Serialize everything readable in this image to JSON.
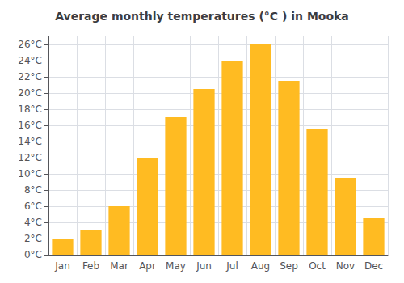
{
  "chart_data": {
    "type": "bar",
    "title": "Average monthly temperatures (°C ) in Mooka",
    "categories": [
      "Jan",
      "Feb",
      "Mar",
      "Apr",
      "May",
      "Jun",
      "Jul",
      "Aug",
      "Sep",
      "Oct",
      "Nov",
      "Dec"
    ],
    "values": [
      2,
      3,
      6,
      12,
      17,
      20.5,
      24,
      26,
      21.5,
      15.5,
      9.5,
      4.5
    ],
    "color": "#FFBB22",
    "ylim": [
      0,
      27
    ],
    "yticks": [
      {
        "value": 0,
        "label": "0°C"
      },
      {
        "value": 2,
        "label": "2°C"
      },
      {
        "value": 4,
        "label": "4°C"
      },
      {
        "value": 6,
        "label": "6°C"
      },
      {
        "value": 8,
        "label": "8°C"
      },
      {
        "value": 10,
        "label": "10°C"
      },
      {
        "value": 12,
        "label": "12°C"
      },
      {
        "value": 14,
        "label": "14°C"
      },
      {
        "value": 16,
        "label": "16°C"
      },
      {
        "value": 18,
        "label": "18°C"
      },
      {
        "value": 20,
        "label": "20°C"
      },
      {
        "value": 22,
        "label": "22°C"
      },
      {
        "value": 24,
        "label": "24°C"
      },
      {
        "value": 26,
        "label": "26°C"
      }
    ],
    "grid": true
  }
}
